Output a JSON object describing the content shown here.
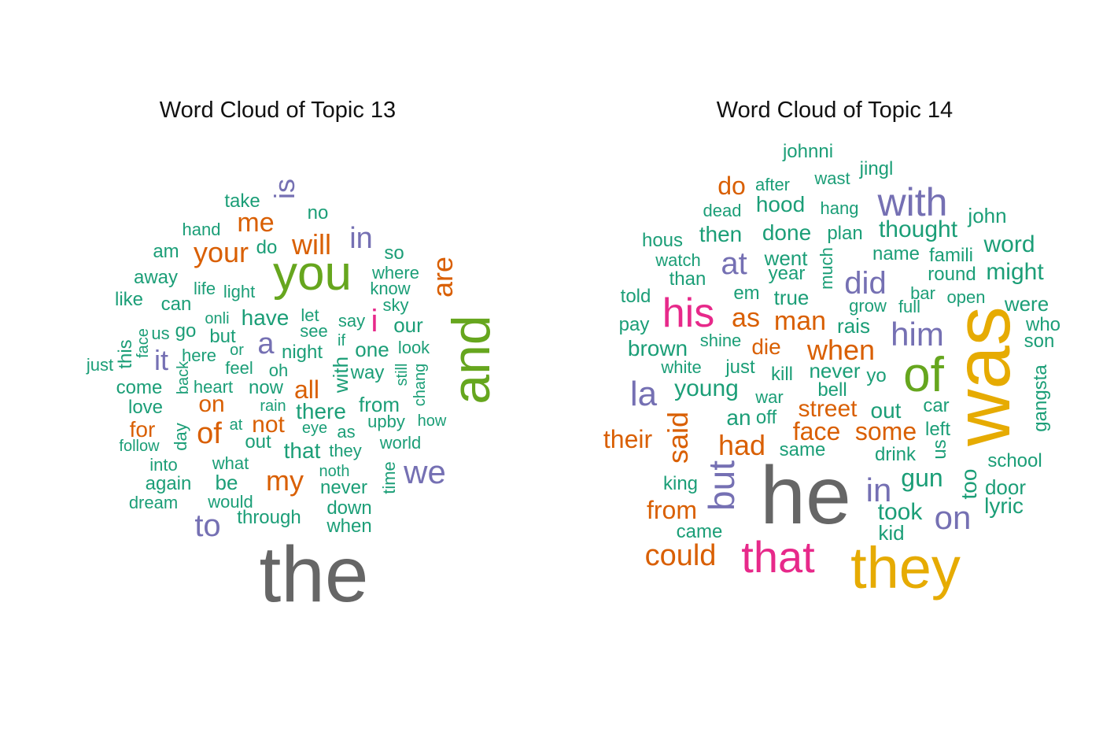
{
  "colors": {
    "teal": "#1b9e77",
    "orange": "#d95f02",
    "purple": "#7570b3",
    "magenta": "#e7298a",
    "green": "#66a61e",
    "gold": "#e6ab02",
    "gray": "#666666"
  },
  "clouds": [
    {
      "title": "Word Cloud of Topic  13",
      "words": [
        "take",
        "is",
        "no",
        "hand",
        "me",
        "am",
        "your",
        "do",
        "will",
        "in",
        "so",
        "you",
        "where",
        "away",
        "life",
        "light",
        "know",
        "are",
        "like",
        "can",
        "sky",
        "onli",
        "let",
        "say",
        "have",
        "see",
        "our",
        "i",
        "this",
        "face",
        "us",
        "go",
        "but",
        "a",
        "if",
        "look",
        "it",
        "here",
        "or",
        "night",
        "one",
        "just",
        "back",
        "feel",
        "oh",
        "with",
        "way",
        "and",
        "still",
        "come",
        "heart",
        "now",
        "all",
        "chang",
        "love",
        "on",
        "rain",
        "there",
        "from",
        "day",
        "at",
        "not",
        "eye",
        "upby",
        "how",
        "for",
        "of",
        "as",
        "follow",
        "out",
        "that",
        "they",
        "world",
        "into",
        "what",
        "noth",
        "be",
        "again",
        "my",
        "time",
        "never",
        "we",
        "dream",
        "would",
        "down",
        "to",
        "through",
        "when",
        "the"
      ]
    },
    {
      "title": "Word Cloud of Topic  14",
      "words": [
        "johnni",
        "wast",
        "jingl",
        "do",
        "after",
        "dead",
        "hood",
        "hang",
        "with",
        "john",
        "hous",
        "then",
        "done",
        "plan",
        "thought",
        "word",
        "watch",
        "went",
        "much",
        "name",
        "famili",
        "than",
        "at",
        "year",
        "did",
        "round",
        "might",
        "told",
        "em",
        "true",
        "grow",
        "bar",
        "open",
        "pay",
        "his",
        "as",
        "full",
        "were",
        "man",
        "rais",
        "who",
        "brown",
        "shine",
        "him",
        "son",
        "die",
        "when",
        "white",
        "just",
        "never",
        "yo",
        "la",
        "kill",
        "of",
        "was",
        "young",
        "war",
        "bell",
        "gangsta",
        "an",
        "off",
        "street",
        "out",
        "car",
        "said",
        "face",
        "some",
        "left",
        "their",
        "had",
        "same",
        "us",
        "drink",
        "school",
        "but",
        "king",
        "gun",
        "too",
        "door",
        "from",
        "he",
        "in",
        "lyric",
        "took",
        "on",
        "came",
        "kid",
        "could",
        "that",
        "they"
      ]
    }
  ]
}
